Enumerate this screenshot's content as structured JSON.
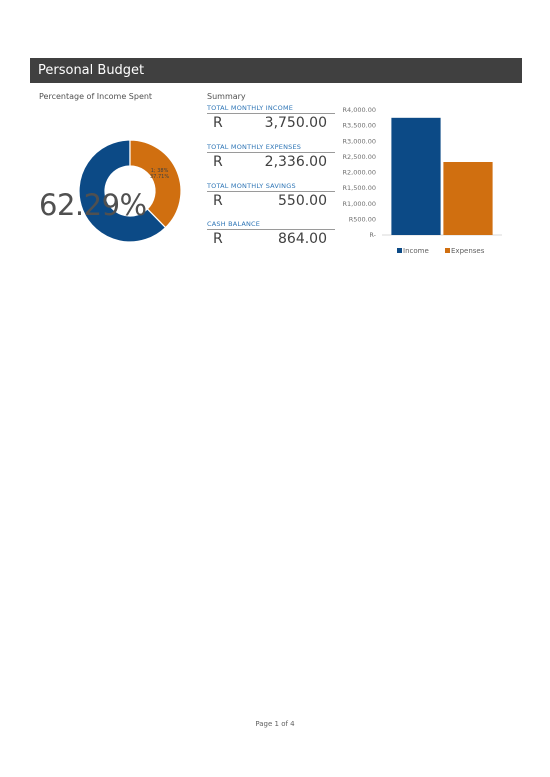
{
  "header": {
    "title": "Personal Budget"
  },
  "donut_section": {
    "heading": "Percentage of Income Spent",
    "percent_text": "62.29%",
    "slice_label_line1": "1; 38%",
    "slice_label_line2": "37.71%"
  },
  "summary": {
    "heading": "Summary",
    "items": [
      {
        "label": "TOTAL MONTHLY INCOME",
        "currency": "R",
        "value": "3,750.00"
      },
      {
        "label": "TOTAL MONTHLY EXPENSES",
        "currency": "R",
        "value": "2,336.00"
      },
      {
        "label": "TOTAL MONTHLY SAVINGS",
        "currency": "R",
        "value": "550.00"
      },
      {
        "label": "CASH BALANCE",
        "currency": "R",
        "value": "864.00"
      }
    ]
  },
  "chart_data": [
    {
      "type": "pie",
      "slices": [
        {
          "value": 62.29,
          "color": "#0c4a86"
        },
        {
          "value": 37.71,
          "color": "#d06f10"
        }
      ]
    },
    {
      "type": "bar",
      "categories": [
        "Income",
        "Expenses"
      ],
      "values": [
        3750,
        2336
      ],
      "colors": [
        "#0c4a86",
        "#d06f10"
      ],
      "ylim": [
        0,
        4000
      ],
      "yticks": [
        "R-",
        "R500.00",
        "R1,000.00",
        "R1,500.00",
        "R2,000.00",
        "R2,500.00",
        "R3,000.00",
        "R3,500.00",
        "R4,000.00"
      ],
      "legend": [
        "Income",
        "Expenses"
      ],
      "legend_position": "bottom",
      "grid": false
    }
  ],
  "footer": {
    "page_text": "Page 1 of 4"
  }
}
